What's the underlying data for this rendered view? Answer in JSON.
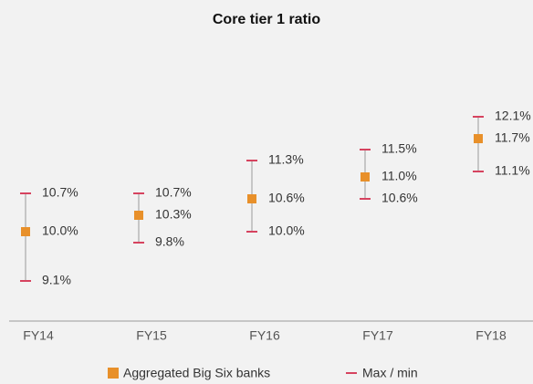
{
  "chart_data": {
    "type": "range",
    "title": "Core tier 1 ratio",
    "categories": [
      "FY14",
      "FY15",
      "FY16",
      "FY17",
      "FY18"
    ],
    "series": [
      {
        "name": "Aggregated Big Six banks",
        "color": "#e8902a",
        "values": [
          10.0,
          10.3,
          10.6,
          11.0,
          11.7
        ],
        "value_labels": [
          "10.0%",
          "10.3%",
          "10.6%",
          "11.0%",
          "11.7%"
        ]
      },
      {
        "name": "Max / min",
        "color": "#d6435f",
        "high": [
          10.7,
          10.7,
          11.3,
          11.5,
          12.1
        ],
        "high_labels": [
          "10.7%",
          "10.7%",
          "11.3%",
          "11.5%",
          "12.1%"
        ],
        "low": [
          9.1,
          9.8,
          10.0,
          10.6,
          11.1
        ],
        "low_labels": [
          "9.1%",
          "9.8%",
          "10.0%",
          "10.6%",
          "11.1%"
        ]
      }
    ]
  }
}
